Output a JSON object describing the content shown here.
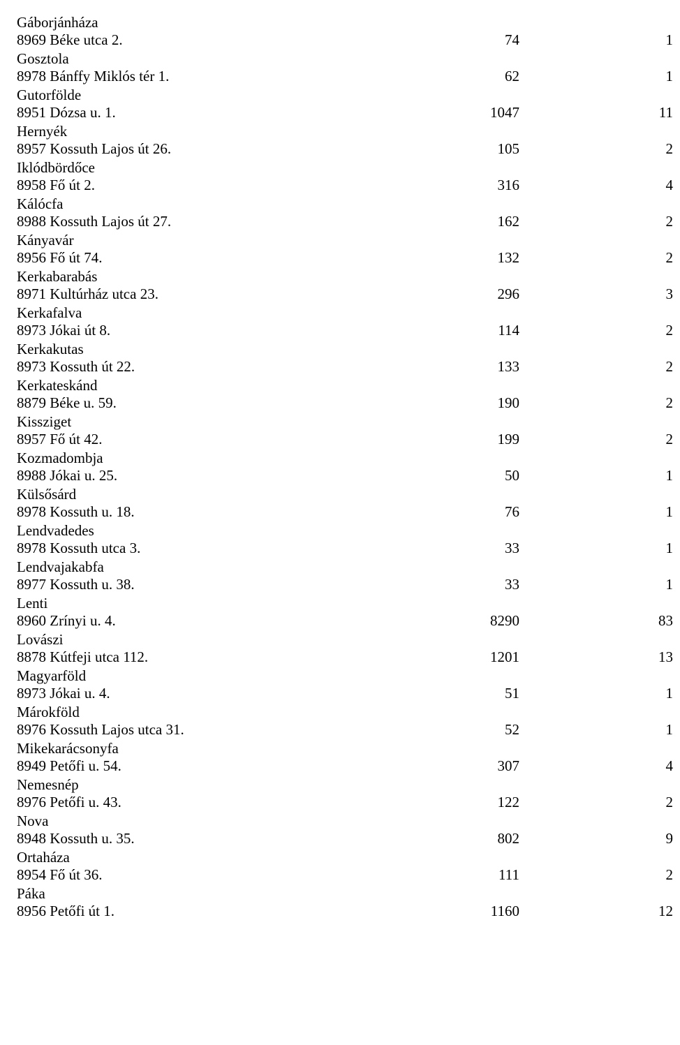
{
  "entries": [
    {
      "town": "Gáborjánháza",
      "address": "8969 Béke utca 2.",
      "c1": "74",
      "c2": "1"
    },
    {
      "town": "Gosztola",
      "address": "8978 Bánffy Miklós tér 1.",
      "c1": "62",
      "c2": "1"
    },
    {
      "town": "Gutorfölde",
      "address": "8951 Dózsa u. 1.",
      "c1": "1047",
      "c2": "11"
    },
    {
      "town": "Hernyék",
      "address": "8957 Kossuth Lajos út 26.",
      "c1": "105",
      "c2": "2"
    },
    {
      "town": "Iklódbördőce",
      "address": "8958 Fő út 2.",
      "c1": "316",
      "c2": "4"
    },
    {
      "town": "Kálócfa",
      "address": "8988 Kossuth Lajos út 27.",
      "c1": "162",
      "c2": "2"
    },
    {
      "town": "Kányavár",
      "address": "8956 Fő út 74.",
      "c1": "132",
      "c2": "2"
    },
    {
      "town": "Kerkabarabás",
      "address": "8971 Kultúrház utca 23.",
      "c1": "296",
      "c2": "3"
    },
    {
      "town": "Kerkafalva",
      "address": "8973 Jókai út 8.",
      "c1": "114",
      "c2": "2"
    },
    {
      "town": "Kerkakutas",
      "address": "8973 Kossuth út 22.",
      "c1": "133",
      "c2": "2"
    },
    {
      "town": "Kerkateskánd",
      "address": "8879 Béke u. 59.",
      "c1": "190",
      "c2": "2"
    },
    {
      "town": "Kissziget",
      "address": "8957 Fő út 42.",
      "c1": "199",
      "c2": "2"
    },
    {
      "town": "Kozmadombja",
      "address": "8988 Jókai u. 25.",
      "c1": "50",
      "c2": "1"
    },
    {
      "town": "Külsősárd",
      "address": "8978 Kossuth u. 18.",
      "c1": "76",
      "c2": "1"
    },
    {
      "town": "Lendvadedes",
      "address": "8978 Kossuth utca 3.",
      "c1": "33",
      "c2": "1"
    },
    {
      "town": "Lendvajakabfa",
      "address": "8977 Kossuth u. 38.",
      "c1": "33",
      "c2": "1"
    },
    {
      "town": "Lenti",
      "address": "8960 Zrínyi u. 4.",
      "c1": "8290",
      "c2": "83"
    },
    {
      "town": "Lovászi",
      "address": "8878 Kútfeji utca 112.",
      "c1": "1201",
      "c2": "13"
    },
    {
      "town": "Magyarföld",
      "address": "8973 Jókai u. 4.",
      "c1": "51",
      "c2": "1"
    },
    {
      "town": "Márokföld",
      "address": "8976 Kossuth Lajos utca 31.",
      "c1": "52",
      "c2": "1"
    },
    {
      "town": "Mikekarácsonyfa",
      "address": "8949 Petőfi u. 54.",
      "c1": "307",
      "c2": "4"
    },
    {
      "town": "Nemesnép",
      "address": "8976 Petőfi u. 43.",
      "c1": "122",
      "c2": "2"
    },
    {
      "town": "Nova",
      "address": "8948 Kossuth u. 35.",
      "c1": "802",
      "c2": "9"
    },
    {
      "town": "Ortaháza",
      "address": "8954 Fő út 36.",
      "c1": "111",
      "c2": "2"
    },
    {
      "town": "Páka",
      "address": "8956 Petőfi út 1.",
      "c1": "1160",
      "c2": "12"
    }
  ]
}
